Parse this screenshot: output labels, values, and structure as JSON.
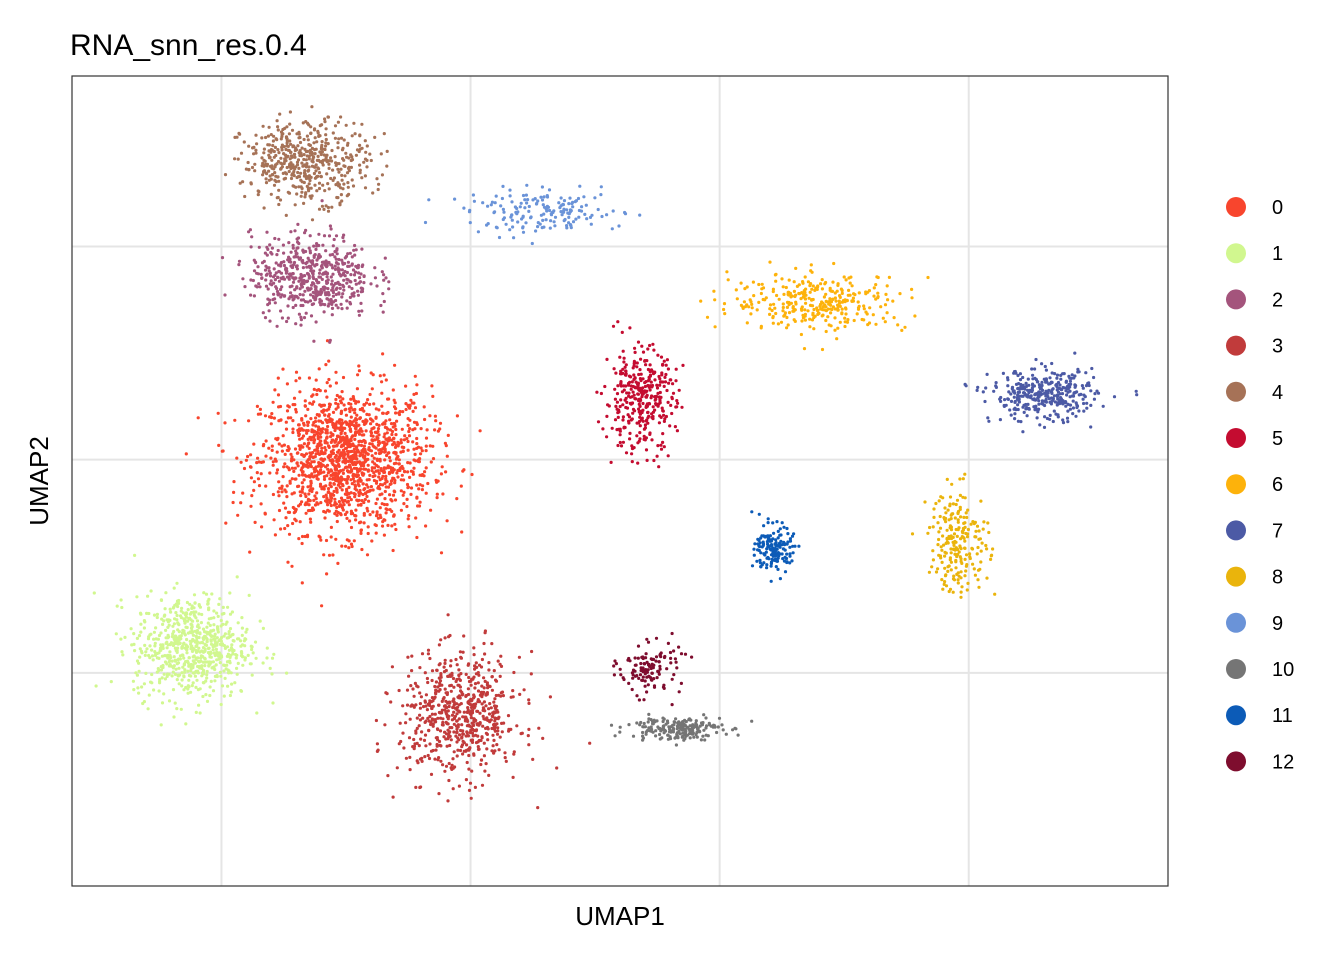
{
  "chart_data": {
    "type": "scatter",
    "title": "RNA_snn_res.0.4",
    "xlabel": "UMAP1",
    "ylabel": "UMAP2",
    "grid": true,
    "ticks_labeled": false,
    "legend_position": "right",
    "legend_title": "",
    "xlim": [
      -8,
      14
    ],
    "ylim": [
      -10,
      9
    ],
    "series": [
      {
        "name": "0",
        "color": "#F8452D",
        "x": -2.5,
        "y": 0.0,
        "sx": 1.55,
        "sy": 1.55,
        "n": 1500
      },
      {
        "name": "1",
        "color": "#D1F78F",
        "x": -5.6,
        "y": -4.4,
        "sx": 1.05,
        "sy": 1.1,
        "n": 700
      },
      {
        "name": "2",
        "color": "#A4547C",
        "x": -3.2,
        "y": 4.3,
        "sx": 1.1,
        "sy": 0.9,
        "n": 550
      },
      {
        "name": "3",
        "color": "#C13B3B",
        "x": -0.2,
        "y": -6.0,
        "sx": 1.1,
        "sy": 1.3,
        "n": 650
      },
      {
        "name": "4",
        "color": "#A67257",
        "x": -3.3,
        "y": 7.0,
        "sx": 1.15,
        "sy": 0.85,
        "n": 500
      },
      {
        "name": "5",
        "color": "#C40C30",
        "x": 3.4,
        "y": 1.4,
        "sx": 0.65,
        "sy": 1.1,
        "n": 350
      },
      {
        "name": "6",
        "color": "#FDB20B",
        "x": 7.0,
        "y": 3.7,
        "sx": 1.6,
        "sy": 0.6,
        "n": 330
      },
      {
        "name": "7",
        "color": "#4C5AA5",
        "x": 11.5,
        "y": 1.5,
        "sx": 0.95,
        "sy": 0.55,
        "n": 350
      },
      {
        "name": "8",
        "color": "#EAB40C",
        "x": 9.8,
        "y": -1.9,
        "sx": 0.55,
        "sy": 1.1,
        "n": 220
      },
      {
        "name": "9",
        "color": "#6A93D8",
        "x": 1.5,
        "y": 5.8,
        "sx": 1.4,
        "sy": 0.45,
        "n": 170
      },
      {
        "name": "10",
        "color": "#757575",
        "x": 4.1,
        "y": -6.3,
        "sx": 0.85,
        "sy": 0.25,
        "n": 200
      },
      {
        "name": "11",
        "color": "#0C5BB7",
        "x": 6.1,
        "y": -2.1,
        "sx": 0.35,
        "sy": 0.5,
        "n": 160
      },
      {
        "name": "12",
        "color": "#7E0D2E",
        "x": 3.6,
        "y": -4.9,
        "sx": 0.55,
        "sy": 0.55,
        "n": 120
      }
    ]
  }
}
